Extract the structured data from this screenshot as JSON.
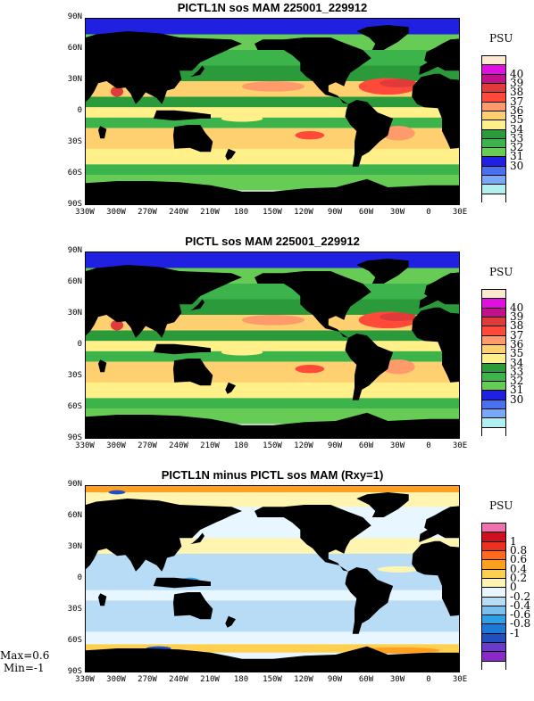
{
  "panels": [
    {
      "title": "PICTL1N sos MAM 225001_229912",
      "unit": "PSU",
      "colorbar_labels": [
        "40",
        "39",
        "38",
        "37",
        "36",
        "35",
        "34",
        "33",
        "32",
        "31",
        "30"
      ],
      "colorbar_colors": [
        "#fde9d0",
        "#e010e0",
        "#c0108a",
        "#e03a3a",
        "#ff4a3a",
        "#ff9a6a",
        "#ffd070",
        "#fff08a",
        "#2a9a3a",
        "#3cb44b",
        "#66cc55",
        "#2020e0",
        "#4a70f0",
        "#7aa8f8",
        "#b0f0f0",
        "#ffffff"
      ]
    },
    {
      "title": "PICTL sos MAM 225001_229912",
      "unit": "PSU",
      "colorbar_labels": [
        "40",
        "39",
        "38",
        "37",
        "36",
        "35",
        "34",
        "33",
        "32",
        "31",
        "30"
      ],
      "colorbar_colors": [
        "#fde9d0",
        "#e010e0",
        "#c0108a",
        "#e03a3a",
        "#ff4a3a",
        "#ff9a6a",
        "#ffd070",
        "#fff08a",
        "#2a9a3a",
        "#3cb44b",
        "#66cc55",
        "#2020e0",
        "#4a70f0",
        "#7aa8f8",
        "#b0f0f0",
        "#ffffff"
      ]
    },
    {
      "title": "PICTL1N minus PICTL sos MAM (Rxy=1)",
      "unit": "PSU",
      "colorbar_labels": [
        "1",
        "0.8",
        "0.6",
        "0.4",
        "0.2",
        "0",
        "-0.2",
        "-0.4",
        "-0.6",
        "-0.8",
        "-1"
      ],
      "colorbar_colors": [
        "#f070b0",
        "#d01020",
        "#ee3020",
        "#ff6a20",
        "#ffa020",
        "#ffd050",
        "#fff5b0",
        "#e8f6ff",
        "#b8dcf5",
        "#78c0ee",
        "#30a0e6",
        "#1e78d6",
        "#2050c0",
        "#6a3ac8",
        "#8a28c8",
        "#ffffff"
      ]
    }
  ],
  "lat_labels": [
    "90N",
    "60N",
    "30N",
    "0",
    "30S",
    "60S",
    "90S"
  ],
  "lon_labels": [
    "330W",
    "300W",
    "270W",
    "240W",
    "210W",
    "180",
    "150W",
    "120W",
    "90W",
    "60W",
    "30W",
    "0",
    "30E"
  ],
  "stats": {
    "max": "Max=0.6",
    "min": "Min=-1"
  }
}
